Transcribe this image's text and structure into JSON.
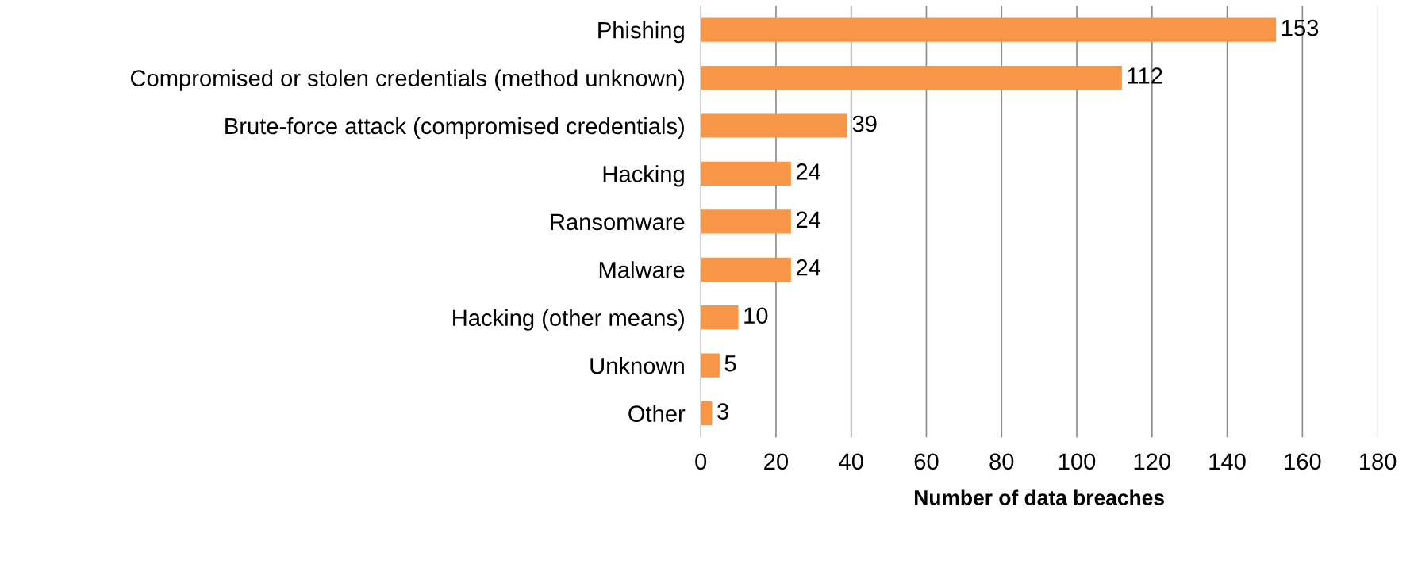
{
  "chart_data": {
    "type": "bar",
    "orientation": "horizontal",
    "xlabel": "Number of data breaches",
    "categories": [
      "Phishing",
      "Compromised or stolen credentials (method unknown)",
      "Brute-force attack (compromised credentials)",
      "Hacking",
      "Ransomware",
      "Malware",
      "Hacking (other means)",
      "Unknown",
      "Other"
    ],
    "values": [
      153,
      112,
      39,
      24,
      24,
      24,
      10,
      5,
      3
    ],
    "color": "#f79646",
    "xlim": [
      0,
      180
    ],
    "xticks": [
      0,
      20,
      40,
      60,
      80,
      100,
      120,
      140,
      160,
      180
    ],
    "grid": "x",
    "data_labels": true,
    "legend": false
  }
}
